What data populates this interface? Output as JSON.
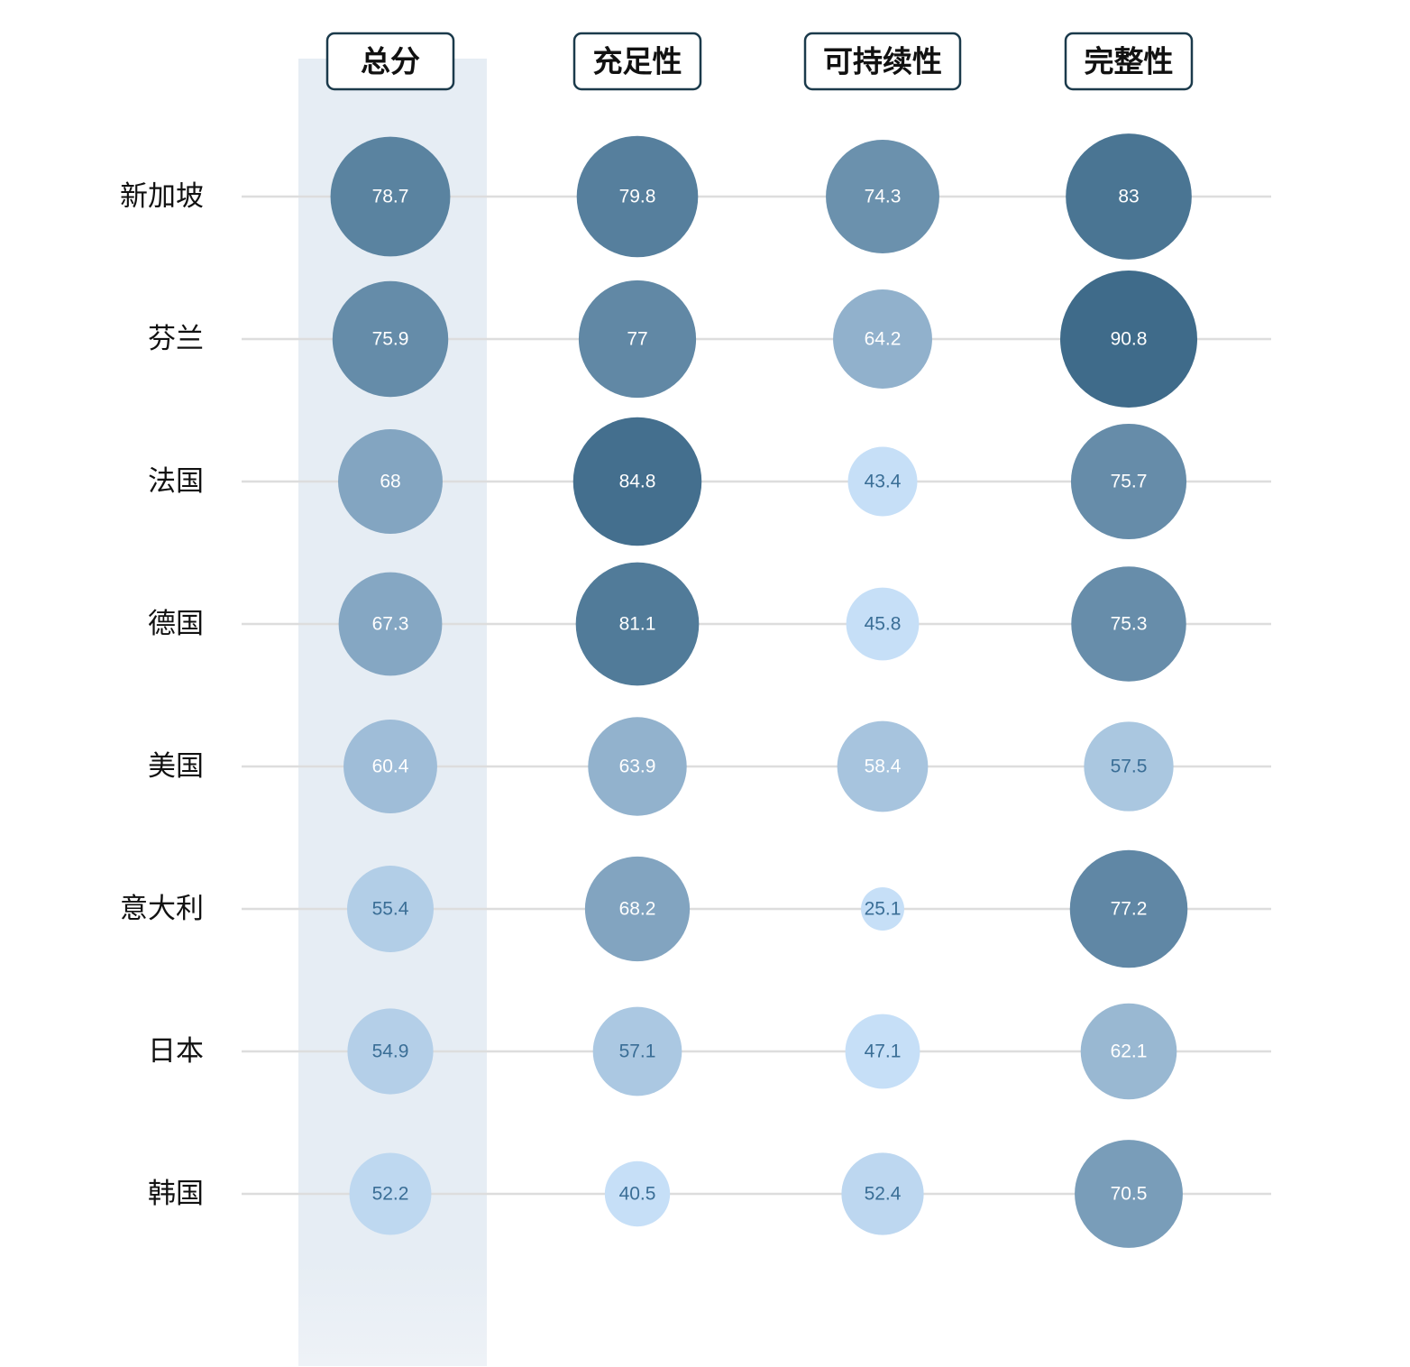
{
  "chart_data": {
    "type": "bubble-matrix",
    "columns": [
      "总分",
      "充足性",
      "可持续性",
      "完整性"
    ],
    "rows": [
      "新加坡",
      "芬兰",
      "法国",
      "德国",
      "美国",
      "意大利",
      "日本",
      "韩国"
    ],
    "values": [
      [
        78.7,
        79.8,
        74.3,
        83
      ],
      [
        75.9,
        77,
        64.2,
        90.8
      ],
      [
        68,
        84.8,
        43.4,
        75.7
      ],
      [
        67.3,
        81.1,
        45.8,
        75.3
      ],
      [
        60.4,
        63.9,
        58.4,
        57.5
      ],
      [
        55.4,
        68.2,
        25.1,
        77.2
      ],
      [
        54.9,
        57.1,
        47.1,
        62.1
      ],
      [
        52.2,
        40.5,
        52.4,
        70.5
      ]
    ],
    "highlighted_column": "总分",
    "color_scale": {
      "low": "#c6dff7",
      "high": "#3f6b8a"
    },
    "label_color_dark": "#3a6e96",
    "label_color_light": "#ffffff",
    "header_border_color": "#1b3a4b",
    "gridline_color": "#dddddd",
    "highlight_band_color": "#e6edf4"
  }
}
